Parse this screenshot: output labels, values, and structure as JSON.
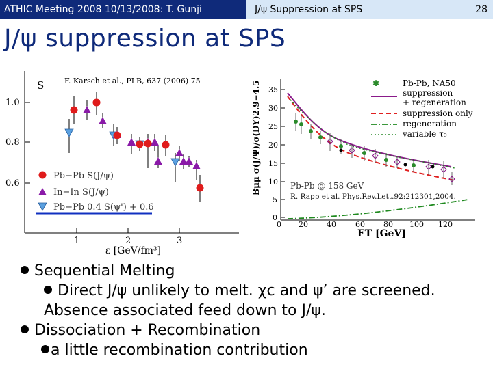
{
  "header": {
    "left_text": "ATHIC Meeting 2008 10/13/2008: T. Gunji",
    "right_text": "J/ψ Suppression at SPS",
    "page_number": "28"
  },
  "slide": {
    "title": "J/ψ suppression at SPS"
  },
  "left_figure": {
    "citation": "F. Karsch et al., PLB, 637 (2006) 75",
    "ylabel": "S",
    "xlabel": "ε [GeV/fm³]",
    "y_ticks": [
      "0.6",
      "0.8",
      "1.0"
    ],
    "x_ticks": [
      "1",
      "2",
      "3"
    ],
    "legend": [
      "Pb−Pb S(J/ψ)",
      "In−In S(J/ψ)",
      "Pb−Pb 0.4 S(ψ') + 0.6"
    ],
    "colors": {
      "pbpb": "#e01b1b",
      "inin": "#8a1aa8",
      "psiprime": "#5aa0e0",
      "underline": "#1030c0"
    }
  },
  "right_figure": {
    "ylabel": "Bμμ σ(J/Ψ)/σ(DY)2.9−4.5",
    "xlabel": "ET [GeV]",
    "y_ticks": [
      "0",
      "5",
      "10",
      "15",
      "20",
      "25",
      "30",
      "35"
    ],
    "x_ticks": [
      "0",
      "20",
      "40",
      "60",
      "80",
      "100",
      "120"
    ],
    "legend": [
      "Pb-Pb, NA50",
      "suppression",
      "+ regeneration",
      "suppression only",
      "regeneration",
      "variable τ₀"
    ],
    "label_system": "Pb-Pb @ 158 GeV",
    "label_ref": "R. Rapp et al. Phys.Rev.Lett.92:212301,2004.",
    "colors": {
      "data": "#2a8a2a",
      "suppression_regen": "#8a1a8a",
      "suppression_only": "#e02020",
      "regeneration": "#208a20"
    }
  },
  "bullets": {
    "b1": "Sequential Melting",
    "b1a": "Direct J/ψ unlikely to melt.  χc and ψ’ are screened.",
    "b1b": "Absence associated feed down to J/ψ.",
    "b2": "Dissociation + Recombination",
    "b2a": "a little recombination contribution"
  }
}
